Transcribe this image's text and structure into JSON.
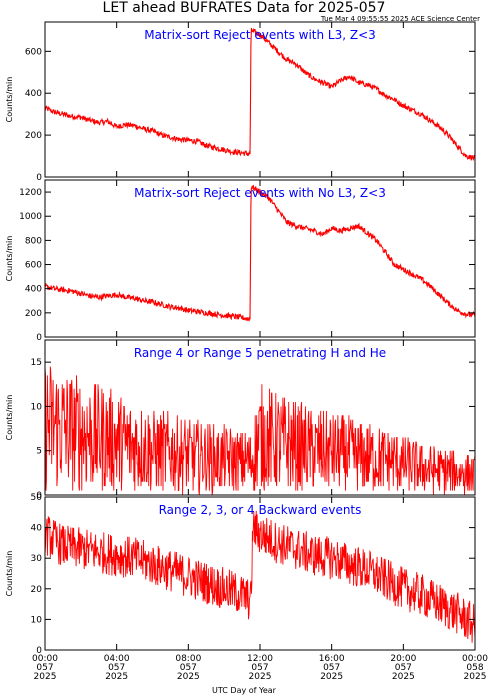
{
  "title": "LET ahead BUFRATES Data for 2025-057",
  "timestamp": "Tue Mar  4 09:55:55 2025 ACE Science Center",
  "xlabel": "UTC Day of Year",
  "xticks": [
    {
      "time": "00:00",
      "doy": "057",
      "year": "2025"
    },
    {
      "time": "04:00",
      "doy": "057",
      "year": "2025"
    },
    {
      "time": "08:00",
      "doy": "057",
      "year": "2025"
    },
    {
      "time": "12:00",
      "doy": "057",
      "year": "2025"
    },
    {
      "time": "16:00",
      "doy": "057",
      "year": "2025"
    },
    {
      "time": "20:00",
      "doy": "057",
      "year": "2025"
    },
    {
      "time": "00:00",
      "doy": "058",
      "year": "2025"
    }
  ],
  "colors": {
    "trace": "#ff0000",
    "label": "#0000ff",
    "axis": "#000000"
  },
  "chart_data": [
    {
      "type": "line",
      "title": "Matrix-sort Reject events with L3, Z<3",
      "ylabel": "Counts/min",
      "xlim": [
        0,
        24
      ],
      "ylim": [
        0,
        740
      ],
      "yticks": [
        0,
        200,
        400,
        600
      ],
      "series": [
        {
          "x": [
            0,
            0.5,
            1,
            1.5,
            2,
            2.5,
            3,
            3.5,
            4,
            4.5,
            5,
            5.5,
            6,
            6.5,
            7,
            7.5,
            8,
            8.5,
            9,
            9.5,
            10,
            10.5,
            11,
            11.4,
            11.45,
            11.5,
            12,
            12.5,
            13,
            13.5,
            14,
            14.5,
            15,
            15.5,
            16,
            16.5,
            17,
            17.5,
            18,
            18.5,
            19,
            19.5,
            20,
            20.5,
            21,
            21.5,
            22,
            22.5,
            23,
            23.5,
            24
          ],
          "y": [
            330,
            310,
            300,
            290,
            285,
            270,
            260,
            265,
            240,
            250,
            245,
            230,
            220,
            200,
            190,
            180,
            175,
            170,
            150,
            140,
            130,
            120,
            115,
            110,
            110,
            700,
            680,
            640,
            600,
            560,
            540,
            500,
            470,
            450,
            430,
            460,
            480,
            450,
            440,
            420,
            390,
            370,
            340,
            320,
            300,
            270,
            240,
            200,
            150,
            100,
            90
          ]
        }
      ]
    },
    {
      "type": "line",
      "title": "Matrix-sort Reject events with No L3, Z<3",
      "ylabel": "Counts/min",
      "xlim": [
        0,
        24
      ],
      "ylim": [
        0,
        1300
      ],
      "yticks": [
        0,
        200,
        400,
        600,
        800,
        1000,
        1200
      ],
      "series": [
        {
          "x": [
            0,
            0.5,
            1,
            1.5,
            2,
            2.5,
            3,
            3.5,
            4,
            4.5,
            5,
            5.5,
            6,
            6.5,
            7,
            7.5,
            8,
            8.5,
            9,
            9.5,
            10,
            10.5,
            11,
            11.4,
            11.45,
            11.5,
            12,
            12.5,
            13,
            13.5,
            14,
            14.5,
            15,
            15.5,
            16,
            16.5,
            17,
            17.5,
            18,
            18.5,
            19,
            19.5,
            20,
            20.5,
            21,
            21.5,
            22,
            22.5,
            23,
            23.5,
            24
          ],
          "y": [
            420,
            400,
            390,
            380,
            360,
            340,
            330,
            340,
            350,
            330,
            320,
            300,
            290,
            270,
            250,
            240,
            220,
            210,
            200,
            190,
            180,
            170,
            160,
            150,
            150,
            1250,
            1200,
            1150,
            1050,
            950,
            920,
            900,
            880,
            850,
            900,
            880,
            900,
            920,
            860,
            800,
            700,
            600,
            560,
            520,
            480,
            420,
            350,
            280,
            220,
            190,
            180
          ]
        }
      ]
    },
    {
      "type": "line",
      "title": "Range 4 or Range 5 penetrating H and He",
      "ylabel": "Counts/min",
      "xlim": [
        0,
        24
      ],
      "ylim": [
        0,
        17.5
      ],
      "yticks": [
        0,
        5,
        10,
        15
      ],
      "series": [
        {
          "x": [
            0,
            1,
            2,
            3,
            4,
            5,
            6,
            7,
            8,
            9,
            10,
            11,
            11.5,
            12,
            13,
            14,
            15,
            16,
            17,
            18,
            19,
            20,
            21,
            22,
            23,
            24
          ],
          "y": [
            8,
            7.5,
            7,
            6.5,
            6,
            5.5,
            5,
            4.8,
            4.5,
            4.2,
            4,
            3.8,
            3.8,
            6.5,
            6,
            5.5,
            5,
            4.8,
            4.5,
            4.2,
            4,
            3.5,
            3,
            2.8,
            2.5,
            2.3
          ]
        }
      ]
    },
    {
      "type": "line",
      "title": "Range 2, 3, or 4 Backward events",
      "ylabel": "Counts/min",
      "xlim": [
        0,
        24
      ],
      "ylim": [
        0,
        50
      ],
      "yticks": [
        0,
        10,
        20,
        30,
        40,
        50
      ],
      "series": [
        {
          "x": [
            0,
            1,
            2,
            3,
            4,
            5,
            6,
            7,
            8,
            9,
            10,
            11,
            11.5,
            11.6,
            12,
            13,
            14,
            15,
            16,
            17,
            18,
            19,
            20,
            21,
            22,
            23,
            24
          ],
          "y": [
            38,
            34,
            33,
            32,
            31,
            30,
            28,
            26,
            24,
            22,
            20,
            18,
            16,
            40,
            38,
            35,
            33,
            31,
            30,
            28,
            26,
            23,
            20,
            18,
            15,
            12,
            8
          ]
        }
      ]
    }
  ]
}
